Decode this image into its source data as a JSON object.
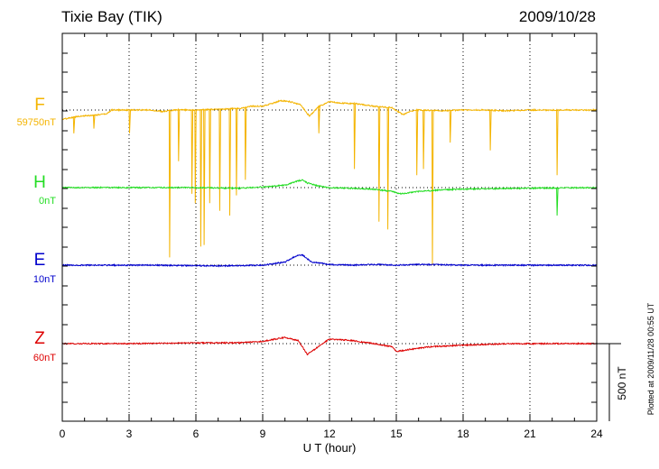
{
  "header": {
    "station": "Tixie Bay (TIK)",
    "date": "2009/10/28"
  },
  "footer": {
    "plotted_note": "Plotted at 2009/11/28 00:55 UT",
    "scale_label": "500 nT"
  },
  "chart_data": {
    "type": "line",
    "title": "Tixie Bay (TIK)",
    "xlabel": "U T (hour)",
    "xlim": [
      0,
      24
    ],
    "xticks": [
      0,
      3,
      6,
      9,
      12,
      15,
      18,
      21,
      24
    ],
    "grid": "dotted vertical lines every 3 h, dotted baseline per trace",
    "scale_bar_nT": 500,
    "series": [
      {
        "name": "F",
        "baseline_label": "59750nT",
        "color": "#f4b400",
        "values": [
          [
            0,
            -60
          ],
          [
            0.4,
            -50
          ],
          [
            0.7,
            -40
          ],
          [
            1.3,
            -35
          ],
          [
            2,
            -25
          ],
          [
            2.2,
            0
          ],
          [
            3,
            0
          ],
          [
            4,
            0
          ],
          [
            4.5,
            -10
          ],
          [
            5,
            0
          ],
          [
            6,
            0
          ],
          [
            7,
            5
          ],
          [
            8,
            10
          ],
          [
            8.5,
            25
          ],
          [
            9,
            25
          ],
          [
            9.8,
            60
          ],
          [
            10.2,
            55
          ],
          [
            10.7,
            35
          ],
          [
            11.1,
            -40
          ],
          [
            11.5,
            20
          ],
          [
            12,
            55
          ],
          [
            12.5,
            45
          ],
          [
            13.2,
            40
          ],
          [
            14,
            25
          ],
          [
            14.8,
            15
          ],
          [
            15.3,
            -30
          ],
          [
            15.6,
            -10
          ],
          [
            16,
            0
          ],
          [
            17,
            -5
          ],
          [
            18,
            0
          ],
          [
            19,
            0
          ],
          [
            20,
            -5
          ],
          [
            21,
            0
          ],
          [
            22,
            0
          ],
          [
            23,
            0
          ],
          [
            24,
            0
          ]
        ],
        "spikes": [
          [
            0.5,
            -150
          ],
          [
            1.4,
            -120
          ],
          [
            3,
            -150
          ],
          [
            4.8,
            -950
          ],
          [
            5.2,
            -330
          ],
          [
            5.8,
            -540
          ],
          [
            5.95,
            -600
          ],
          [
            6.2,
            -880
          ],
          [
            6.35,
            -870
          ],
          [
            6.6,
            -600
          ],
          [
            7.05,
            -650
          ],
          [
            7.5,
            -680
          ],
          [
            7.8,
            -550
          ],
          [
            8.2,
            -450
          ],
          [
            11.5,
            -150
          ],
          [
            13.1,
            -380
          ],
          [
            14.2,
            -720
          ],
          [
            14.6,
            -770
          ],
          [
            15.9,
            -420
          ],
          [
            16.2,
            -380
          ],
          [
            16.6,
            -1000
          ],
          [
            17.4,
            -210
          ],
          [
            19.2,
            -260
          ],
          [
            22.2,
            -420
          ]
        ]
      },
      {
        "name": "H",
        "baseline_label": "0nT",
        "color": "#22dd22",
        "values": [
          [
            0,
            0
          ],
          [
            6,
            0
          ],
          [
            8,
            -5
          ],
          [
            9,
            5
          ],
          [
            10,
            15
          ],
          [
            10.5,
            40
          ],
          [
            10.8,
            50
          ],
          [
            11,
            30
          ],
          [
            11.5,
            10
          ],
          [
            12,
            0
          ],
          [
            13,
            -5
          ],
          [
            14,
            -10
          ],
          [
            14.8,
            -25
          ],
          [
            15.2,
            -40
          ],
          [
            16,
            -25
          ],
          [
            17,
            -15
          ],
          [
            18,
            -10
          ],
          [
            20,
            -5
          ],
          [
            24,
            0
          ]
        ],
        "spikes": [
          [
            22.2,
            -180
          ]
        ]
      },
      {
        "name": "E",
        "baseline_label": "10nT",
        "color": "#0000cc",
        "values": [
          [
            0,
            0
          ],
          [
            4,
            0
          ],
          [
            7,
            -5
          ],
          [
            9,
            0
          ],
          [
            10,
            20
          ],
          [
            10.5,
            60
          ],
          [
            10.8,
            65
          ],
          [
            11.2,
            20
          ],
          [
            12,
            5
          ],
          [
            13,
            0
          ],
          [
            14,
            5
          ],
          [
            15,
            0
          ],
          [
            16,
            5
          ],
          [
            18,
            0
          ],
          [
            20,
            0
          ],
          [
            24,
            0
          ]
        ],
        "spikes": []
      },
      {
        "name": "Z",
        "baseline_label": "60nT",
        "color": "#dd0000",
        "values": [
          [
            0,
            0
          ],
          [
            3,
            0
          ],
          [
            6,
            5
          ],
          [
            8,
            5
          ],
          [
            9,
            15
          ],
          [
            10,
            40
          ],
          [
            10.6,
            20
          ],
          [
            11,
            -70
          ],
          [
            11.5,
            -20
          ],
          [
            12,
            30
          ],
          [
            13,
            20
          ],
          [
            14,
            0
          ],
          [
            14.8,
            -20
          ],
          [
            15,
            -50
          ],
          [
            15.5,
            -40
          ],
          [
            16.5,
            -20
          ],
          [
            18,
            -10
          ],
          [
            20,
            0
          ],
          [
            24,
            0
          ]
        ],
        "spikes": []
      }
    ]
  }
}
